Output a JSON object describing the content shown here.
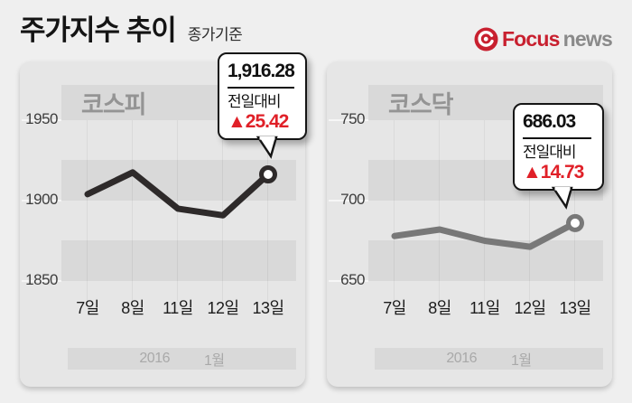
{
  "header": {
    "title": "주가지수 추이",
    "subtitle": "종가기준",
    "logo": {
      "brand_focus": "Focus",
      "brand_news": "news"
    }
  },
  "charts": [
    {
      "title": "코스피",
      "y_ticks": [
        "1950",
        "1900",
        "1850"
      ],
      "x_ticks": [
        "7일",
        "8일",
        "11일",
        "12일",
        "13일"
      ],
      "callout": {
        "value": "1,916.28",
        "label": "전일대비",
        "change": "▲25.42"
      }
    },
    {
      "title": "코스닥",
      "y_ticks": [
        "750",
        "700",
        "650"
      ],
      "x_ticks": [
        "7일",
        "8일",
        "11일",
        "12일",
        "13일"
      ],
      "callout": {
        "value": "686.03",
        "label": "전일대비",
        "change": "▲14.73"
      }
    }
  ],
  "footer": {
    "year": "2016",
    "month": "1월"
  },
  "colors": {
    "accent_red": "#e02028",
    "kospi_line": "#2e2a2a",
    "kosdaq_line": "#787878",
    "card_bg": "#e6e6e6",
    "band_bg": "#d9d9d9"
  },
  "chart_data": [
    {
      "type": "line",
      "title": "코스피 (KOSPI), 종가기준",
      "x": [
        "7일",
        "8일",
        "11일",
        "12일",
        "13일"
      ],
      "values": [
        1904,
        1917.5,
        1895,
        1890.86,
        1916.28
      ],
      "yticks": [
        1950,
        1900,
        1850
      ],
      "ylim": [
        1838,
        1972
      ],
      "last_value_label": "1,916.28",
      "change_vs_prev_day": "+25.42",
      "period": "2016 1월",
      "line_color": "#2e2a2a",
      "grid": "horizontal-bands",
      "legend": "none"
    },
    {
      "type": "line",
      "title": "코스닥 (KOSDAQ), 종가기준",
      "x": [
        "7일",
        "8일",
        "11일",
        "12일",
        "13일"
      ],
      "values": [
        678,
        682,
        675,
        671.3,
        686.03
      ],
      "yticks": [
        750,
        700,
        650
      ],
      "ylim": [
        638,
        772
      ],
      "last_value_label": "686.03",
      "change_vs_prev_day": "+14.73",
      "period": "2016 1월",
      "line_color": "#787878",
      "grid": "horizontal-bands",
      "legend": "none"
    }
  ]
}
